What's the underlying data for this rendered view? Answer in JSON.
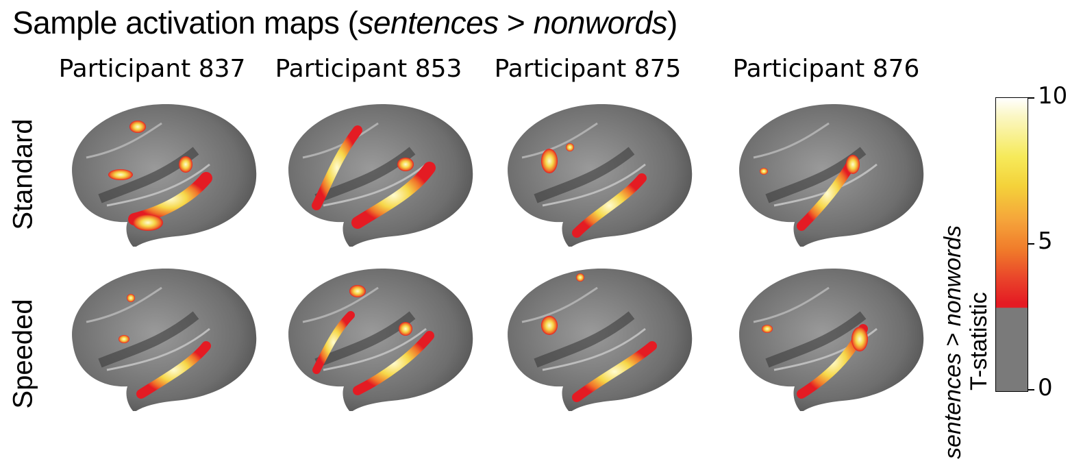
{
  "title": {
    "prefix": "Sample activation maps (",
    "contrast_a": "sentences",
    "sep": " > ",
    "contrast_b": "nonwords",
    "suffix": ")"
  },
  "participants": [
    "Participant 837",
    "Participant 853",
    "Participant 875",
    "Participant 876"
  ],
  "conditions": [
    "Standard",
    "Speeded"
  ],
  "colorbar": {
    "label_line1_a": "sentences",
    "label_line1_sep": " > ",
    "label_line1_b": "nonwords",
    "label_line2": "T-statistic",
    "ticks": [
      "10",
      "5",
      "0"
    ],
    "min": 0,
    "max": 10,
    "threshold": 3,
    "colors": {
      "low": "#7a7a7a",
      "threshold": "#e41b23",
      "mid": "#f5a33a",
      "high": "#f6ea5a",
      "top": "#ffffff"
    }
  }
}
